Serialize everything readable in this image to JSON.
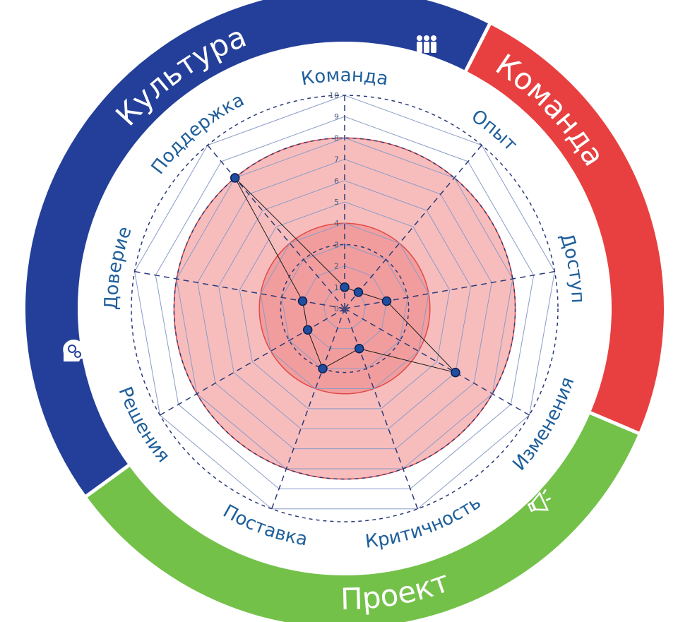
{
  "chart_data": {
    "type": "radar",
    "title": "",
    "categories": [
      "Команда",
      "Опыт",
      "Доступ",
      "Изменения",
      "Критичность",
      "Поставка",
      "Решения",
      "Доверие",
      "Поддержка"
    ],
    "series": [
      {
        "values": [
          1,
          1,
          2,
          6,
          2,
          3,
          2,
          2,
          8
        ]
      }
    ],
    "rlim": [
      0,
      10
    ],
    "ticks": [
      "0",
      "1",
      "2",
      "3",
      "4",
      "5",
      "6",
      "7",
      "8",
      "9",
      "10"
    ],
    "risk_zones": [
      {
        "radius": 8,
        "color": "#f7bdbd"
      },
      {
        "radius": 4,
        "color": "#f29d9d"
      }
    ],
    "groups": [
      {
        "name": "Команда",
        "color": "#e84040",
        "icon": "team-icon"
      },
      {
        "name": "Проект",
        "color": "#74c14a",
        "icon": "megaphone-icon"
      },
      {
        "name": "Культура",
        "color": "#243f99",
        "icon": "gears-head-icon"
      }
    ],
    "marker_color": "#1f4ea0",
    "grid_color": "#2a3a7a"
  }
}
